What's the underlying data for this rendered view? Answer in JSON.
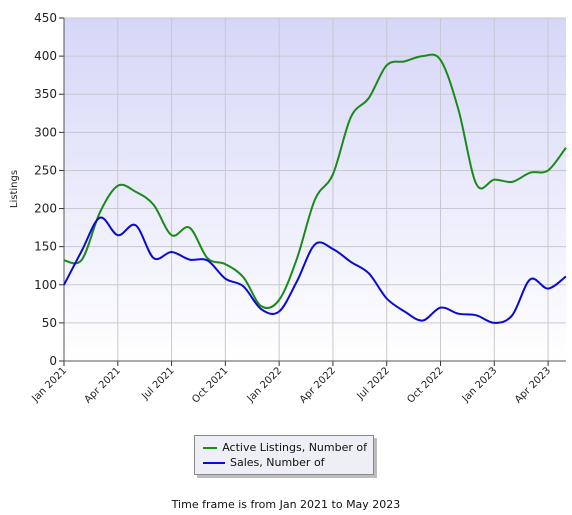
{
  "chart_data": {
    "type": "line",
    "title": "",
    "xlabel": "",
    "ylabel": "Listings",
    "ylim": [
      0,
      450
    ],
    "yticks": [
      0,
      50,
      100,
      150,
      200,
      250,
      300,
      350,
      400,
      450
    ],
    "x": [
      "Jan 2021",
      "Feb 2021",
      "Mar 2021",
      "Apr 2021",
      "May 2021",
      "Jun 2021",
      "Jul 2021",
      "Aug 2021",
      "Sep 2021",
      "Oct 2021",
      "Nov 2021",
      "Dec 2021",
      "Jan 2022",
      "Feb 2022",
      "Mar 2022",
      "Apr 2022",
      "May 2022",
      "Jun 2022",
      "Jul 2022",
      "Aug 2022",
      "Sep 2022",
      "Oct 2022",
      "Nov 2022",
      "Dec 2022",
      "Jan 2023",
      "Feb 2023",
      "Mar 2023",
      "Apr 2023",
      "May 2023"
    ],
    "xtick_labels": [
      "Jan 2021",
      "Apr 2021",
      "Jul 2021",
      "Oct 2021",
      "Jan 2022",
      "Apr 2022",
      "Jul 2022",
      "Oct 2022",
      "Jan 2023",
      "Apr 2023"
    ],
    "series": [
      {
        "name": "Active Listings, Number of",
        "color": "#1a8a1a",
        "values": [
          132,
          133,
          195,
          230,
          222,
          205,
          165,
          175,
          135,
          127,
          110,
          72,
          80,
          135,
          212,
          245,
          320,
          345,
          388,
          393,
          400,
          395,
          330,
          232,
          238,
          235,
          247,
          250,
          280
        ]
      },
      {
        "name": "Sales, Number of",
        "color": "#0a0ad0",
        "values": [
          100,
          145,
          188,
          165,
          178,
          135,
          143,
          133,
          132,
          108,
          98,
          68,
          65,
          105,
          153,
          147,
          130,
          115,
          82,
          65,
          53,
          70,
          62,
          60,
          50,
          60,
          107,
          95,
          111
        ]
      }
    ],
    "grid": true,
    "legend_position": "bottom"
  },
  "footer": {
    "timeframe": "Time frame is from Jan 2021 to May 2023"
  }
}
